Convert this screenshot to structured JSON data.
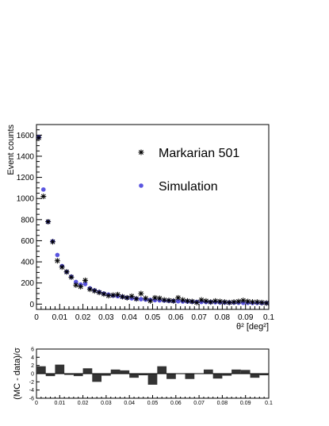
{
  "chart_data": [
    {
      "type": "scatter",
      "title": "",
      "xlabel": "θ² [deg²]",
      "ylabel": "Event counts",
      "xlim": [
        0,
        0.1
      ],
      "ylim": [
        -50,
        1700
      ],
      "x_ticks": [
        "0",
        "0.01",
        "0.02",
        "0.03",
        "0.04",
        "0.05",
        "0.06",
        "0.07",
        "0.08",
        "0.09",
        "0.1"
      ],
      "y_ticks": [
        "0",
        "200",
        "400",
        "600",
        "800",
        "1000",
        "1200",
        "1400",
        "1600"
      ],
      "legend_position": "top-right",
      "series": [
        {
          "name": "Markarian 501",
          "marker": "star",
          "color": "#000000",
          "x": [
            0.001,
            0.003,
            0.005,
            0.007,
            0.009,
            0.011,
            0.013,
            0.015,
            0.017,
            0.019,
            0.021,
            0.023,
            0.025,
            0.027,
            0.029,
            0.031,
            0.033,
            0.035,
            0.037,
            0.039,
            0.041,
            0.043,
            0.045,
            0.047,
            0.049,
            0.051,
            0.053,
            0.055,
            0.057,
            0.059,
            0.061,
            0.063,
            0.065,
            0.067,
            0.069,
            0.071,
            0.073,
            0.075,
            0.077,
            0.079,
            0.081,
            0.083,
            0.085,
            0.087,
            0.089,
            0.091,
            0.093,
            0.095,
            0.097,
            0.099
          ],
          "y": [
            1575,
            1020,
            780,
            590,
            410,
            350,
            305,
            255,
            180,
            165,
            225,
            140,
            125,
            110,
            95,
            80,
            85,
            90,
            70,
            60,
            75,
            50,
            100,
            55,
            30,
            60,
            55,
            40,
            35,
            30,
            60,
            40,
            30,
            25,
            15,
            40,
            30,
            20,
            30,
            25,
            20,
            15,
            20,
            25,
            35,
            25,
            20,
            20,
            15,
            10
          ]
        },
        {
          "name": "Simulation",
          "marker": "circle",
          "color": "#5a55e0",
          "x": [
            0.001,
            0.003,
            0.005,
            0.007,
            0.009,
            0.011,
            0.013,
            0.015,
            0.017,
            0.019,
            0.021,
            0.023,
            0.025,
            0.027,
            0.029,
            0.031,
            0.033,
            0.035,
            0.037,
            0.039,
            0.041,
            0.043,
            0.045,
            0.047,
            0.049,
            0.051,
            0.053,
            0.055,
            0.057,
            0.059,
            0.061,
            0.063,
            0.065,
            0.067,
            0.069,
            0.071,
            0.073,
            0.075,
            0.077,
            0.079,
            0.081,
            0.083,
            0.085,
            0.087,
            0.089,
            0.091,
            0.093,
            0.095,
            0.097,
            0.099
          ],
          "y": [
            1580,
            1085,
            780,
            595,
            465,
            360,
            305,
            260,
            210,
            185,
            190,
            150,
            130,
            115,
            100,
            90,
            80,
            75,
            70,
            60,
            55,
            50,
            47,
            43,
            40,
            37,
            35,
            33,
            31,
            29,
            27,
            25,
            24,
            22,
            21,
            20,
            19,
            18,
            17,
            16,
            15,
            14,
            14,
            13,
            12,
            12,
            11,
            11,
            10,
            10
          ]
        }
      ]
    },
    {
      "type": "bar",
      "title": "",
      "xlabel": "",
      "ylabel": "(MC - data)/σ",
      "xlim": [
        0,
        0.1
      ],
      "ylim": [
        -6,
        6
      ],
      "x_ticks": [
        "0",
        "0.01",
        "0.02",
        "0.03",
        "0.04",
        "0.05",
        "0.06",
        "0.07",
        "0.08",
        "0.09",
        "0.1"
      ],
      "y_ticks": [
        "-6",
        "-4",
        "-2",
        "0",
        "2",
        "4",
        "6"
      ],
      "bin_width": 0.004,
      "x": [
        0.002,
        0.006,
        0.01,
        0.014,
        0.018,
        0.022,
        0.026,
        0.03,
        0.034,
        0.038,
        0.042,
        0.046,
        0.05,
        0.054,
        0.058,
        0.062,
        0.066,
        0.07,
        0.074,
        0.078,
        0.082,
        0.086,
        0.09,
        0.094,
        0.098
      ],
      "values": [
        1.8,
        -0.6,
        2.2,
        -0.3,
        -0.6,
        1.3,
        -2.0,
        -0.5,
        1.0,
        0.8,
        -1.0,
        -0.4,
        -2.7,
        1.8,
        -1.3,
        -0.1,
        -1.3,
        -0.1,
        1.0,
        -1.2,
        -0.5,
        1.0,
        0.9,
        -1.0,
        -0.4
      ]
    }
  ]
}
